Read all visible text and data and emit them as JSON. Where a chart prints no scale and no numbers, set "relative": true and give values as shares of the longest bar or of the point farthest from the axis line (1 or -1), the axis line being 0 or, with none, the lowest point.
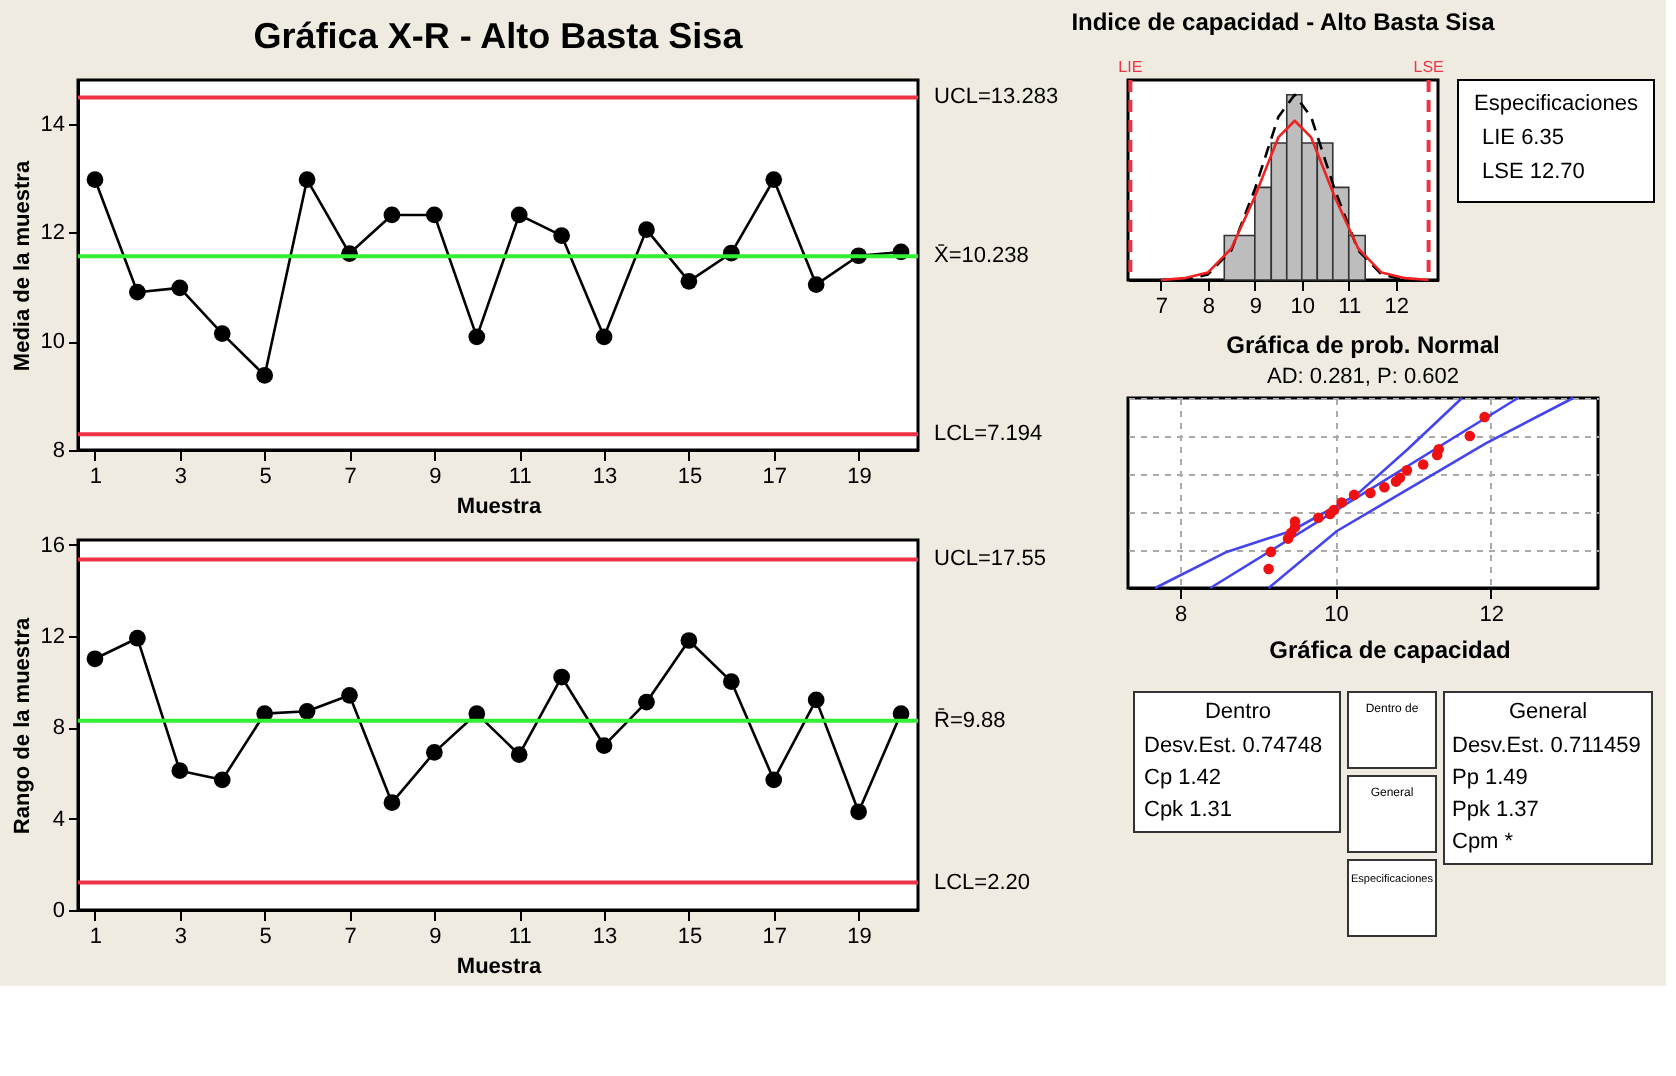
{
  "chart_data": [
    {
      "type": "line",
      "title": "Gráfica X-R - Alto Basta Sisa",
      "xlabel": "Muestra",
      "ylabel": "Media de la muestra",
      "color": "#000000",
      "marker": "circle",
      "x": [
        1,
        2,
        3,
        4,
        5,
        6,
        7,
        8,
        9,
        10,
        11,
        12,
        13,
        14,
        15,
        16,
        17,
        18,
        19,
        20
      ],
      "values": [
        12.97,
        10.9,
        10.98,
        10.14,
        9.37,
        12.97,
        11.61,
        12.32,
        12.32,
        10.08,
        12.32,
        11.94,
        10.08,
        12.05,
        11.1,
        11.62,
        12.97,
        11.04,
        11.57,
        11.64
      ],
      "xlim": [
        0.6,
        20.4
      ],
      "xticks": [
        1,
        3,
        5,
        7,
        9,
        11,
        13,
        15,
        17,
        19
      ],
      "ylim": [
        8,
        14.8
      ],
      "yticks": [
        8,
        10,
        12,
        14
      ],
      "ref_lines": [
        {
          "axis": "y",
          "value": 14.48,
          "color": "#ee3344"
        },
        {
          "axis": "y",
          "value": 11.56,
          "color": "#33ee33"
        },
        {
          "axis": "y",
          "value": 8.29,
          "color": "#ee3344"
        }
      ],
      "annotations": [
        "UCL=13.283",
        "X̄=10.238",
        "LCL=7.194"
      ]
    },
    {
      "type": "line",
      "xlabel": "Muestra",
      "ylabel": "Rango de la muestra",
      "color": "#000000",
      "marker": "circle",
      "x": [
        1,
        2,
        3,
        4,
        5,
        6,
        7,
        8,
        9,
        10,
        11,
        12,
        13,
        14,
        15,
        16,
        17,
        18,
        19,
        20
      ],
      "values": [
        11.0,
        11.9,
        6.1,
        5.7,
        8.6,
        8.7,
        9.4,
        4.7,
        6.9,
        8.6,
        6.8,
        10.2,
        7.2,
        9.1,
        11.8,
        10.0,
        5.7,
        9.2,
        4.3,
        8.6
      ],
      "xlim": [
        0.6,
        20.4
      ],
      "xticks": [
        1,
        3,
        5,
        7,
        9,
        11,
        13,
        15,
        17,
        19
      ],
      "ylim": [
        0,
        16.2
      ],
      "yticks": [
        0,
        4,
        8,
        12,
        16
      ],
      "ref_lines": [
        {
          "axis": "y",
          "value": 15.35,
          "color": "#ee3344"
        },
        {
          "axis": "y",
          "value": 8.29,
          "color": "#33ee33"
        },
        {
          "axis": "y",
          "value": 1.2,
          "color": "#ee3344"
        }
      ],
      "annotations": [
        "UCL=17.55",
        "R̄=9.88",
        "LCL=2.20"
      ]
    },
    {
      "type": "histogram",
      "title": "Indice de capacidad - Alto Basta Sisa",
      "relative": true,
      "color": "#bdbdbd",
      "bins": [
        8.35,
        9.0,
        9.35,
        9.68,
        10.0,
        10.33,
        10.66,
        11.0,
        11.35
      ],
      "values": [
        0.24,
        0.5,
        0.74,
        1,
        0.74,
        0.74,
        0.5,
        0.24
      ],
      "series": [
        {
          "type": "line",
          "color": "#000000",
          "line_style": "dashed",
          "x": [
            7.0,
            7.5,
            8.0,
            8.5,
            9.0,
            9.5,
            9.85,
            10.2,
            10.7,
            11.2,
            11.7,
            12.2,
            12.7
          ],
          "values": [
            0.0,
            0.0,
            0.03,
            0.16,
            0.49,
            0.88,
            1.0,
            0.88,
            0.49,
            0.16,
            0.03,
            0.0,
            0.0
          ]
        },
        {
          "type": "line",
          "color": "#ee2222",
          "line_style": "solid",
          "x": [
            7.0,
            7.5,
            8.0,
            8.5,
            9.0,
            9.5,
            9.85,
            10.2,
            10.7,
            11.2,
            11.7,
            12.2,
            12.7
          ],
          "values": [
            0.0,
            0.01,
            0.04,
            0.17,
            0.45,
            0.77,
            0.86,
            0.77,
            0.45,
            0.17,
            0.04,
            0.01,
            0.0
          ]
        }
      ],
      "xlim": [
        6.3,
        12.9
      ],
      "xticks": [
        7,
        8,
        9,
        10,
        11,
        12
      ],
      "ref_lines": [
        {
          "axis": "x",
          "value": 6.35,
          "label": "LIE",
          "color": "#ee3344",
          "line_style": "dashed"
        },
        {
          "axis": "x",
          "value": 12.7,
          "label": "LSE",
          "color": "#ee3344",
          "line_style": "dashed"
        }
      ],
      "annotations": [
        "Especificaciones",
        "LIE      6.35",
        "LSE    12.70"
      ]
    },
    {
      "type": "scatter",
      "title": "Gráfica de prob. Normal",
      "subtitle": "AD: 0.281, P: 0.602",
      "relative": true,
      "grid": true,
      "tick_labels": "x",
      "xlim": [
        7.33,
        13.38
      ],
      "xticks": [
        8,
        10,
        12
      ],
      "series": [
        {
          "type": "scatter",
          "color": "#ee1111",
          "x": [
            9.14,
            9.17,
            9.39,
            9.43,
            9.48,
            9.48,
            9.78,
            9.93,
            9.98,
            10.08,
            10.24,
            10.45,
            10.63,
            10.78,
            10.83,
            10.92,
            11.13,
            11.31,
            11.33,
            11.73,
            11.92
          ],
          "values": [
            0.1,
            0.19,
            0.26,
            0.29,
            0.32,
            0.35,
            0.37,
            0.39,
            0.41,
            0.45,
            0.49,
            0.5,
            0.53,
            0.56,
            0.58,
            0.62,
            0.65,
            0.7,
            0.73,
            0.8,
            0.9
          ]
        },
        {
          "type": "line",
          "color": "#4444ee",
          "line_style": "solid",
          "x": [
            8.39,
            12.35
          ],
          "values": [
            0,
            1
          ]
        },
        {
          "type": "line",
          "color": "#4444ee",
          "line_style": "solid",
          "x": [
            7.68,
            8.6,
            9.43,
            10.27,
            10.93,
            11.63
          ],
          "values": [
            0,
            0.19,
            0.3,
            0.49,
            0.73,
            1
          ]
        },
        {
          "type": "line",
          "color": "#4444ee",
          "line_style": "solid",
          "x": [
            9.14,
            10.02,
            11.1,
            11.93,
            13.06
          ],
          "values": [
            0,
            0.3,
            0.56,
            0.76,
            1
          ]
        }
      ]
    },
    {
      "type": "other",
      "title": "Gráfica de capacidad",
      "annotations": [
        "Dentro",
        "Desv.Est.   0.74748",
        "Cp              1.42",
        "Cpk            1.31",
        "Dentro de",
        "General",
        "Especificaciones",
        "General",
        "Desv.Est.   0.711459",
        "Pp              1.49",
        "Ppk            1.37",
        "Cpm           *"
      ]
    }
  ]
}
